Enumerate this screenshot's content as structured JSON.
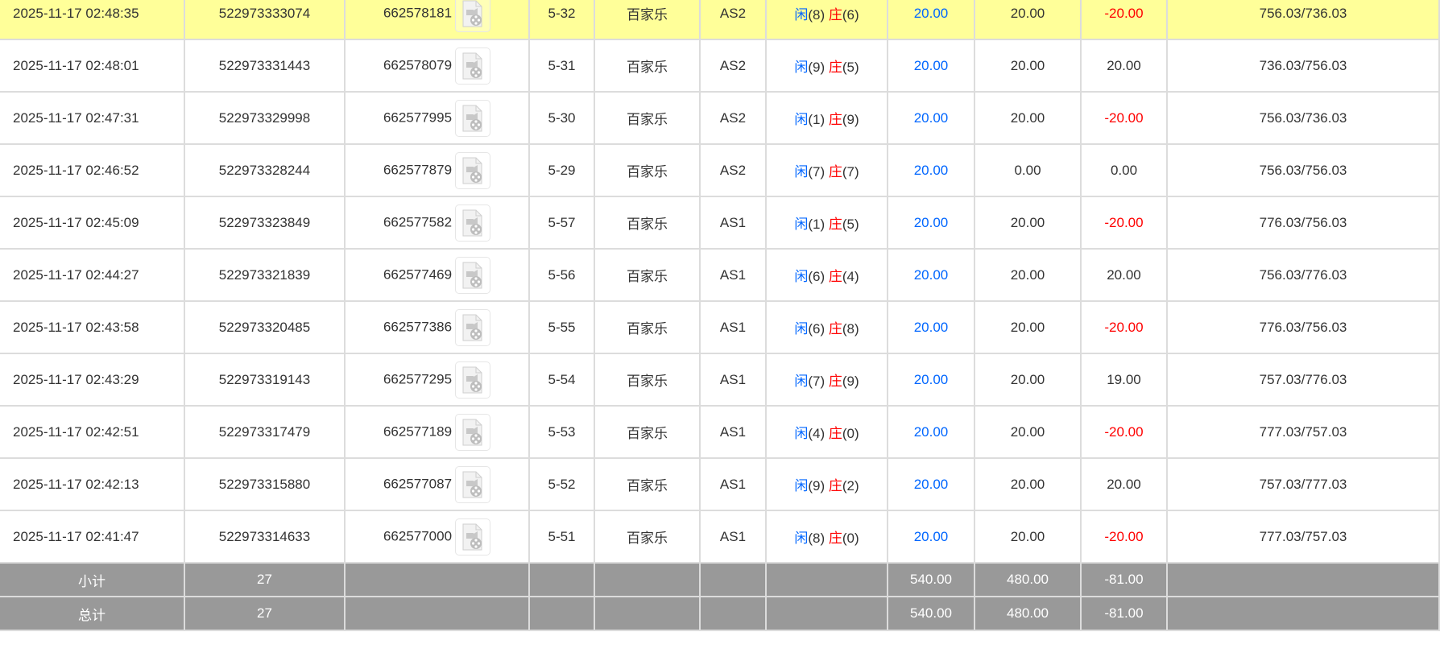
{
  "colors": {
    "highlight": "#ffff99",
    "bet": "#0066ff",
    "loss": "#ff0000",
    "summary_bg": "#999999"
  },
  "result_labels": {
    "player": "闲",
    "banker": "庄"
  },
  "icon": "video-replay-icon",
  "rows": [
    {
      "time": "2025-11-17 02:48:35",
      "order_id": "522973333074",
      "round_id": "662578181",
      "shoe": "5-32",
      "game": "百家乐",
      "table": "AS2",
      "player": "(8)",
      "banker": "(6)",
      "bet": "20.00",
      "valid_bet": "20.00",
      "win_loss": "-20.00",
      "balance": "756.03/736.03",
      "highlight": true
    },
    {
      "time": "2025-11-17 02:48:01",
      "order_id": "522973331443",
      "round_id": "662578079",
      "shoe": "5-31",
      "game": "百家乐",
      "table": "AS2",
      "player": "(9)",
      "banker": "(5)",
      "bet": "20.00",
      "valid_bet": "20.00",
      "win_loss": "20.00",
      "balance": "736.03/756.03"
    },
    {
      "time": "2025-11-17 02:47:31",
      "order_id": "522973329998",
      "round_id": "662577995",
      "shoe": "5-30",
      "game": "百家乐",
      "table": "AS2",
      "player": "(1)",
      "banker": "(9)",
      "bet": "20.00",
      "valid_bet": "20.00",
      "win_loss": "-20.00",
      "balance": "756.03/736.03"
    },
    {
      "time": "2025-11-17 02:46:52",
      "order_id": "522973328244",
      "round_id": "662577879",
      "shoe": "5-29",
      "game": "百家乐",
      "table": "AS2",
      "player": "(7)",
      "banker": "(7)",
      "bet": "20.00",
      "valid_bet": "0.00",
      "win_loss": "0.00",
      "balance": "756.03/756.03"
    },
    {
      "time": "2025-11-17 02:45:09",
      "order_id": "522973323849",
      "round_id": "662577582",
      "shoe": "5-57",
      "game": "百家乐",
      "table": "AS1",
      "player": "(1)",
      "banker": "(5)",
      "bet": "20.00",
      "valid_bet": "20.00",
      "win_loss": "-20.00",
      "balance": "776.03/756.03"
    },
    {
      "time": "2025-11-17 02:44:27",
      "order_id": "522973321839",
      "round_id": "662577469",
      "shoe": "5-56",
      "game": "百家乐",
      "table": "AS1",
      "player": "(6)",
      "banker": "(4)",
      "bet": "20.00",
      "valid_bet": "20.00",
      "win_loss": "20.00",
      "balance": "756.03/776.03"
    },
    {
      "time": "2025-11-17 02:43:58",
      "order_id": "522973320485",
      "round_id": "662577386",
      "shoe": "5-55",
      "game": "百家乐",
      "table": "AS1",
      "player": "(6)",
      "banker": "(8)",
      "bet": "20.00",
      "valid_bet": "20.00",
      "win_loss": "-20.00",
      "balance": "776.03/756.03"
    },
    {
      "time": "2025-11-17 02:43:29",
      "order_id": "522973319143",
      "round_id": "662577295",
      "shoe": "5-54",
      "game": "百家乐",
      "table": "AS1",
      "player": "(7)",
      "banker": "(9)",
      "bet": "20.00",
      "valid_bet": "20.00",
      "win_loss": "19.00",
      "balance": "757.03/776.03"
    },
    {
      "time": "2025-11-17 02:42:51",
      "order_id": "522973317479",
      "round_id": "662577189",
      "shoe": "5-53",
      "game": "百家乐",
      "table": "AS1",
      "player": "(4)",
      "banker": "(0)",
      "bet": "20.00",
      "valid_bet": "20.00",
      "win_loss": "-20.00",
      "balance": "777.03/757.03"
    },
    {
      "time": "2025-11-17 02:42:13",
      "order_id": "522973315880",
      "round_id": "662577087",
      "shoe": "5-52",
      "game": "百家乐",
      "table": "AS1",
      "player": "(9)",
      "banker": "(2)",
      "bet": "20.00",
      "valid_bet": "20.00",
      "win_loss": "20.00",
      "balance": "757.03/777.03"
    },
    {
      "time": "2025-11-17 02:41:47",
      "order_id": "522973314633",
      "round_id": "662577000",
      "shoe": "5-51",
      "game": "百家乐",
      "table": "AS1",
      "player": "(8)",
      "banker": "(0)",
      "bet": "20.00",
      "valid_bet": "20.00",
      "win_loss": "-20.00",
      "balance": "777.03/757.03"
    }
  ],
  "summary": [
    {
      "label": "小计",
      "count": "27",
      "bet": "540.00",
      "valid_bet": "480.00",
      "win_loss": "-81.00"
    },
    {
      "label": "总计",
      "count": "27",
      "bet": "540.00",
      "valid_bet": "480.00",
      "win_loss": "-81.00"
    }
  ]
}
